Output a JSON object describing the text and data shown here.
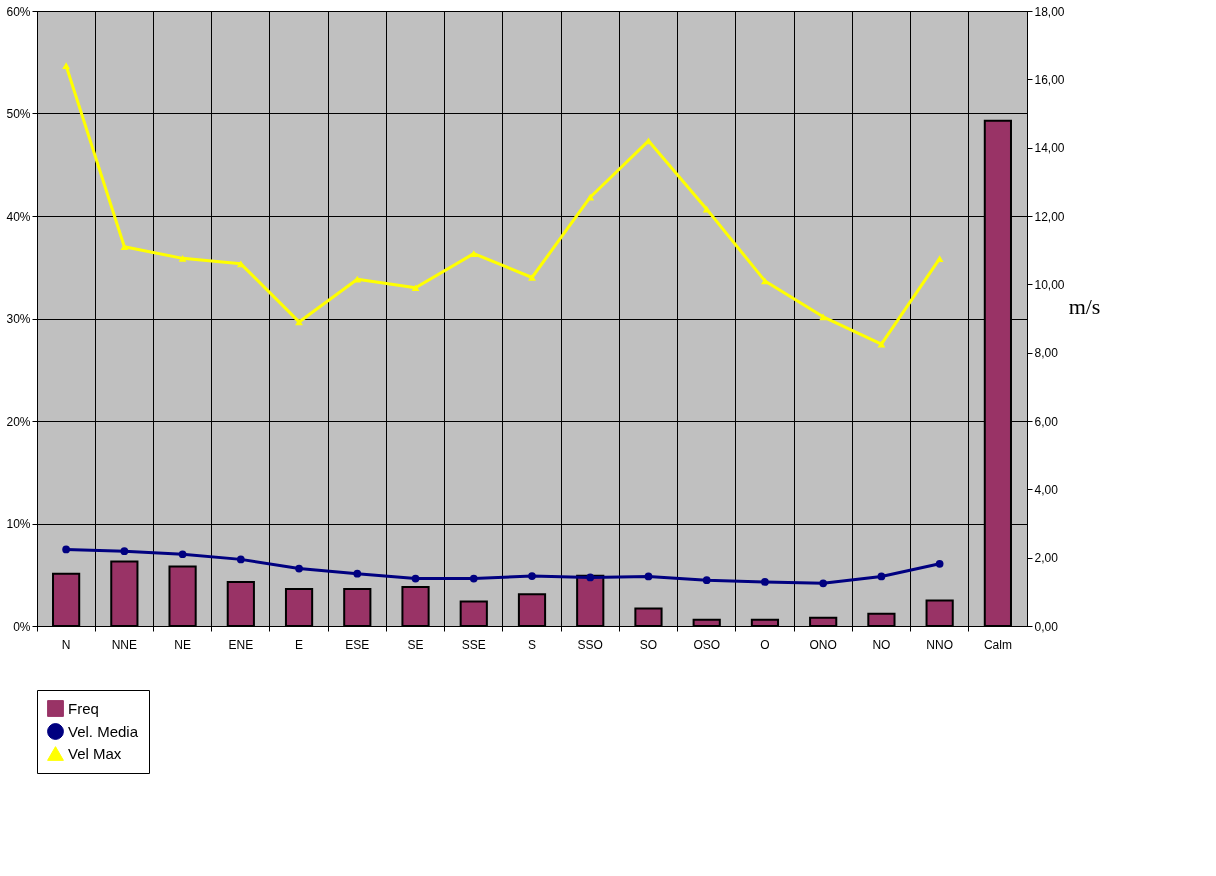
{
  "chart_data": {
    "type": "bar",
    "categories": [
      "N",
      "NNE",
      "NE",
      "ENE",
      "E",
      "ESE",
      "SE",
      "SSE",
      "S",
      "SSO",
      "SO",
      "OSO",
      "O",
      "ONO",
      "NO",
      "NNO",
      "Calm"
    ],
    "series": [
      {
        "name": "Freq",
        "color": "#993366",
        "values": [
          5.1,
          6.3,
          5.8,
          4.3,
          3.6,
          3.6,
          3.8,
          2.4,
          3.1,
          4.9,
          1.7,
          0.6,
          0.6,
          0.8,
          1.2,
          2.5,
          49.3
        ]
      },
      {
        "name": "Vel. Media",
        "type": "line",
        "axis": "y2",
        "marker": "circle",
        "color": "#000080",
        "values": [
          2.24,
          2.19,
          2.1,
          1.95,
          1.68,
          1.53,
          1.39,
          1.39,
          1.46,
          1.42,
          1.45,
          1.34,
          1.29,
          1.25,
          1.45,
          1.82,
          null
        ]
      },
      {
        "name": "Vel Max",
        "type": "line",
        "axis": "y2",
        "marker": "triangle",
        "color": "#ffff00",
        "values": [
          16.4,
          11.1,
          10.76,
          10.6,
          8.9,
          10.15,
          9.9,
          10.9,
          10.2,
          12.55,
          14.2,
          12.2,
          10.1,
          9.05,
          8.25,
          10.75,
          null
        ]
      }
    ],
    "ylim": [
      0,
      60
    ],
    "yticks": [
      {
        "value": 0,
        "label": "0%"
      },
      {
        "value": 10,
        "label": "10%"
      },
      {
        "value": 20,
        "label": "20%"
      },
      {
        "value": 30,
        "label": "30%"
      },
      {
        "value": 40,
        "label": "40%"
      },
      {
        "value": 50,
        "label": "50%"
      },
      {
        "value": 60,
        "label": "60%"
      }
    ],
    "y2lim": [
      0,
      18
    ],
    "y2ticks": [
      {
        "value": 0,
        "label": "0,00"
      },
      {
        "value": 2,
        "label": "2,00"
      },
      {
        "value": 4,
        "label": "4,00"
      },
      {
        "value": 6,
        "label": "6,00"
      },
      {
        "value": 8,
        "label": "8,00"
      },
      {
        "value": 10,
        "label": "10,00"
      },
      {
        "value": 12,
        "label": "12,00"
      },
      {
        "value": 14,
        "label": "14,00"
      },
      {
        "value": 16,
        "label": "16,00"
      },
      {
        "value": 18,
        "label": "18,00"
      }
    ],
    "y2label": "m/s",
    "grid": true,
    "legend": "bottom left"
  }
}
